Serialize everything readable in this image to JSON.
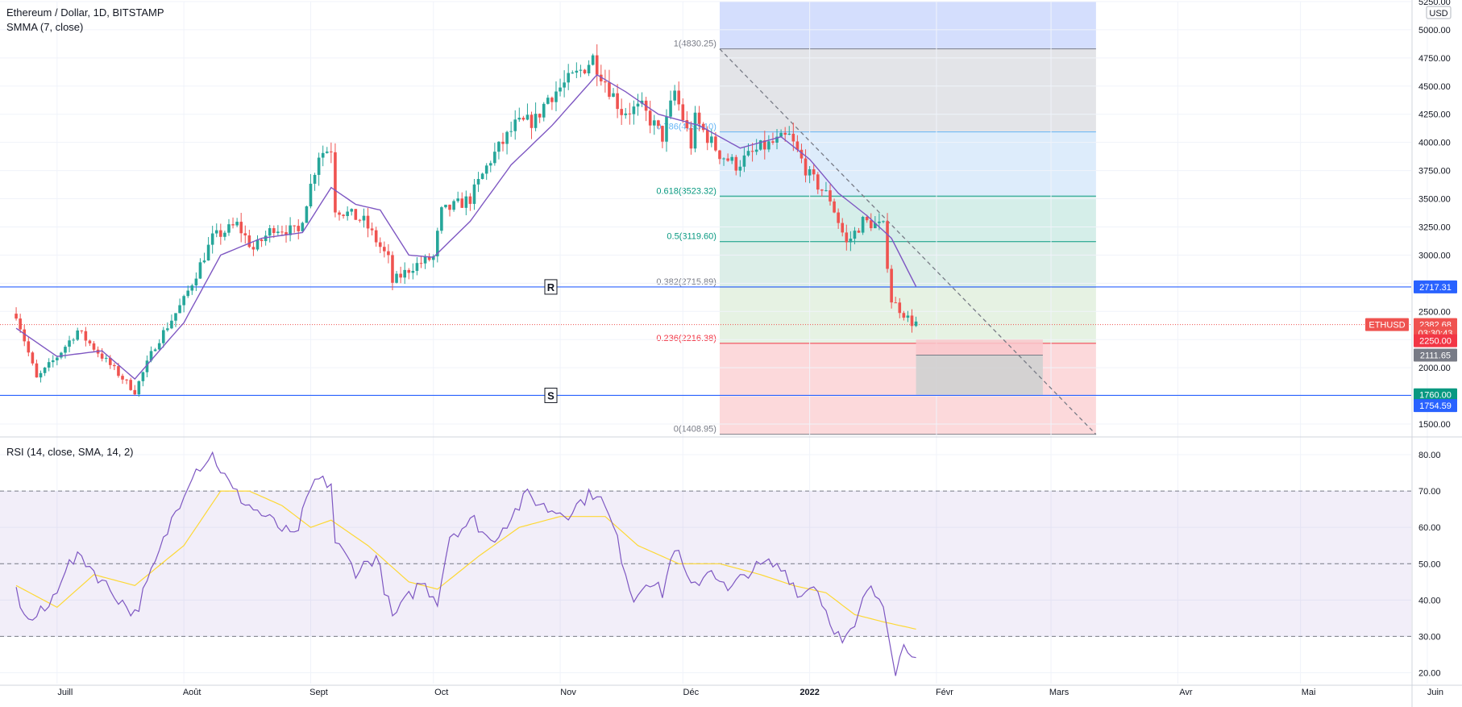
{
  "header": {
    "symbol_title": "Ethereum / Dollar, 1D, BITSTAMP",
    "indicator_smma": "SMMA (7, close)",
    "currency": "USD"
  },
  "rsi_panel": {
    "title": "RSI (14, close, SMA, 14, 2)"
  },
  "colors": {
    "up": "#26a69a",
    "down": "#ef5350",
    "smma": "#7e57c2",
    "rsi": "#7e57c2",
    "rsi_ma": "#fdd835",
    "horizontal_line": "#2962ff"
  },
  "chart_data": [
    {
      "type": "candlestick",
      "title": "Ethereum / Dollar, 1D, BITSTAMP",
      "y_scale": "price",
      "ylim": [
        1400,
        5250
      ],
      "y_ticks": [
        "1500.00",
        "1750.00",
        "2000.00",
        "2250.00",
        "2500.00",
        "2750.00",
        "3000.00",
        "3250.00",
        "3500.00",
        "3750.00",
        "4000.00",
        "4250.00",
        "4500.00",
        "4750.00",
        "5000.00",
        "5250.00"
      ],
      "x_ticks": [
        "Juill",
        "Août",
        "Sept",
        "Oct",
        "Nov",
        "Déc",
        "2022",
        "Févr",
        "Mars",
        "Avr",
        "Mai",
        "Juin"
      ],
      "x_range": [
        "2021-06-21",
        "2022-06-30"
      ],
      "price_anchors": [
        [
          "2021-06-21",
          2480
        ],
        [
          "2021-06-26",
          1900
        ],
        [
          "2021-07-01",
          2100
        ],
        [
          "2021-07-06",
          2330
        ],
        [
          "2021-07-12",
          2100
        ],
        [
          "2021-07-20",
          1790
        ],
        [
          "2021-07-25",
          2200
        ],
        [
          "2021-08-01",
          2600
        ],
        [
          "2021-08-08",
          3150
        ],
        [
          "2021-08-14",
          3270
        ],
        [
          "2021-08-18",
          3050
        ],
        [
          "2021-08-23",
          3250
        ],
        [
          "2021-08-29",
          3200
        ],
        [
          "2021-09-03",
          3900
        ],
        [
          "2021-09-06",
          3950
        ],
        [
          "2021-09-07",
          3420
        ],
        [
          "2021-09-14",
          3300
        ],
        [
          "2021-09-20",
          2960
        ],
        [
          "2021-09-21",
          2760
        ],
        [
          "2021-09-26",
          2900
        ],
        [
          "2021-10-01",
          2980
        ],
        [
          "2021-10-03",
          3380
        ],
        [
          "2021-10-10",
          3500
        ],
        [
          "2021-10-15",
          3850
        ],
        [
          "2021-10-21",
          4150
        ],
        [
          "2021-10-26",
          4200
        ],
        [
          "2021-10-29",
          4400
        ],
        [
          "2021-11-05",
          4600
        ],
        [
          "2021-11-09",
          4750
        ],
        [
          "2021-11-16",
          4280
        ],
        [
          "2021-11-21",
          4300
        ],
        [
          "2021-11-26",
          4050
        ],
        [
          "2021-11-29",
          4450
        ],
        [
          "2021-12-03",
          3980
        ],
        [
          "2021-12-04",
          4200
        ],
        [
          "2021-12-10",
          3900
        ],
        [
          "2021-12-14",
          3800
        ],
        [
          "2021-12-20",
          3950
        ],
        [
          "2021-12-27",
          4050
        ],
        [
          "2022-01-01",
          3700
        ],
        [
          "2022-01-06",
          3500
        ],
        [
          "2022-01-10",
          3100
        ],
        [
          "2022-01-14",
          3300
        ],
        [
          "2022-01-19",
          3250
        ],
        [
          "2022-01-21",
          2600
        ],
        [
          "2022-01-26",
          2400
        ],
        [
          "2022-01-27",
          2400
        ]
      ],
      "smma_anchors": [
        [
          "2021-06-21",
          2350
        ],
        [
          "2021-07-01",
          2100
        ],
        [
          "2021-07-12",
          2150
        ],
        [
          "2021-07-20",
          1900
        ],
        [
          "2021-08-01",
          2400
        ],
        [
          "2021-08-10",
          3000
        ],
        [
          "2021-08-20",
          3150
        ],
        [
          "2021-08-30",
          3200
        ],
        [
          "2021-09-06",
          3600
        ],
        [
          "2021-09-12",
          3450
        ],
        [
          "2021-09-18",
          3400
        ],
        [
          "2021-09-25",
          3000
        ],
        [
          "2021-10-01",
          2980
        ],
        [
          "2021-10-10",
          3300
        ],
        [
          "2021-10-20",
          3800
        ],
        [
          "2021-10-30",
          4150
        ],
        [
          "2021-11-10",
          4600
        ],
        [
          "2021-11-17",
          4450
        ],
        [
          "2021-11-25",
          4250
        ],
        [
          "2021-12-05",
          4150
        ],
        [
          "2021-12-15",
          3950
        ],
        [
          "2021-12-25",
          4050
        ],
        [
          "2022-01-01",
          3850
        ],
        [
          "2022-01-08",
          3550
        ],
        [
          "2022-01-15",
          3350
        ],
        [
          "2022-01-21",
          3150
        ],
        [
          "2022-01-27",
          2720
        ]
      ],
      "fibonacci": {
        "date_range": [
          "2021-12-10",
          "2022-03-12"
        ],
        "levels": [
          {
            "label": "1(4830.25)",
            "price": 4830.25,
            "color": "#787b86"
          },
          {
            "label": "0.786(4093.10)",
            "price": 4093.1,
            "color": "#64b5f6"
          },
          {
            "label": "0.618(3523.32)",
            "price": 3523.32,
            "color": "#089981"
          },
          {
            "label": "0.5(3119.60)",
            "price": 3119.6,
            "color": "#089981"
          },
          {
            "label": "0.382(2715.89)",
            "price": 2715.89,
            "color": "#787b86"
          },
          {
            "label": "0.236(2216.38)",
            "price": 2216.38,
            "color": "#f23645"
          },
          {
            "label": "0(1408.95)",
            "price": 1408.95,
            "color": "#787b86"
          }
        ],
        "zones": [
          {
            "from": 5250,
            "to": 4830.25,
            "color": "#d4defd"
          },
          {
            "from": 4830.25,
            "to": 4093.1,
            "color": "#e3e4e8"
          },
          {
            "from": 4093.1,
            "to": 3523.32,
            "color": "#ddecfb"
          },
          {
            "from": 3523.32,
            "to": 3119.6,
            "color": "#d5eee9"
          },
          {
            "from": 3119.6,
            "to": 2715.89,
            "color": "#dceee8"
          },
          {
            "from": 2715.89,
            "to": 2216.38,
            "color": "#e6f2e3"
          },
          {
            "from": 2216.38,
            "to": 1408.95,
            "color": "#fcd9db"
          }
        ]
      },
      "trend_line": {
        "from": [
          "2021-12-10",
          4830
        ],
        "to": [
          "2022-03-12",
          1408
        ]
      },
      "horizontal_lines": [
        {
          "price": 2717.31,
          "label": "R"
        },
        {
          "price": 1754.59,
          "label": "S"
        }
      ],
      "position_tool": {
        "dates": [
          "2022-01-27",
          "2022-02-27"
        ],
        "stop": {
          "from": 2250,
          "to": 2111.65,
          "color": "#f9c7cb"
        },
        "target": {
          "from": 2111.65,
          "to": 1760,
          "color": "#d2d2d2"
        }
      },
      "last_price": 2382.68,
      "price_labels": [
        {
          "text": "2717.31",
          "price": 2717.31,
          "color": "#2962ff"
        },
        {
          "text": "2382.68",
          "price": 2382.68,
          "color": "#ef5350"
        },
        {
          "text": "03:30:43",
          "price": 2310,
          "color": "#ef5350"
        },
        {
          "text": "2250.00",
          "price": 2240,
          "color": "#f23645"
        },
        {
          "text": "2111.65",
          "price": 2111.65,
          "color": "#787b86"
        },
        {
          "text": "1760.00",
          "price": 1760,
          "color": "#089981"
        },
        {
          "text": "1754.59",
          "price": 1664,
          "color": "#2962ff"
        }
      ],
      "symbol_tag": "ETHUSD"
    },
    {
      "type": "line",
      "title": "RSI (14, close, SMA, 14, 2)",
      "ylim": [
        17,
        84
      ],
      "y_ticks": [
        "20.00",
        "30.00",
        "40.00",
        "50.00",
        "60.00",
        "70.00",
        "80.00"
      ],
      "bands": [
        70,
        50,
        30
      ],
      "rsi_anchors": [
        [
          "2021-06-21",
          42
        ],
        [
          "2021-06-24",
          34
        ],
        [
          "2021-06-29",
          38
        ],
        [
          "2021-07-03",
          49
        ],
        [
          "2021-07-07",
          52
        ],
        [
          "2021-07-13",
          44
        ],
        [
          "2021-07-20",
          36
        ],
        [
          "2021-07-25",
          50
        ],
        [
          "2021-07-29",
          62
        ],
        [
          "2021-08-03",
          75
        ],
        [
          "2021-08-08",
          80
        ],
        [
          "2021-08-13",
          70
        ],
        [
          "2021-08-17",
          66
        ],
        [
          "2021-08-22",
          62
        ],
        [
          "2021-08-28",
          57
        ],
        [
          "2021-09-02",
          73
        ],
        [
          "2021-09-06",
          72
        ],
        [
          "2021-09-07",
          56
        ],
        [
          "2021-09-12",
          48
        ],
        [
          "2021-09-17",
          52
        ],
        [
          "2021-09-21",
          35
        ],
        [
          "2021-09-28",
          45
        ],
        [
          "2021-10-02",
          40
        ],
        [
          "2021-10-05",
          58
        ],
        [
          "2021-10-11",
          62
        ],
        [
          "2021-10-15",
          56
        ],
        [
          "2021-10-20",
          63
        ],
        [
          "2021-10-24",
          69
        ],
        [
          "2021-10-29",
          65
        ],
        [
          "2021-11-03",
          64
        ],
        [
          "2021-11-07",
          68
        ],
        [
          "2021-11-10",
          70
        ],
        [
          "2021-11-14",
          60
        ],
        [
          "2021-11-19",
          40
        ],
        [
          "2021-11-22",
          46
        ],
        [
          "2021-11-26",
          42
        ],
        [
          "2021-11-29",
          55
        ],
        [
          "2021-12-03",
          43
        ],
        [
          "2021-12-08",
          49
        ],
        [
          "2021-12-12",
          42
        ],
        [
          "2021-12-17",
          48
        ],
        [
          "2021-12-22",
          50
        ],
        [
          "2021-12-26",
          48
        ],
        [
          "2021-12-30",
          41
        ],
        [
          "2022-01-02",
          45
        ],
        [
          "2022-01-05",
          37
        ],
        [
          "2022-01-09",
          28
        ],
        [
          "2022-01-12",
          32
        ],
        [
          "2022-01-15",
          43
        ],
        [
          "2022-01-19",
          40
        ],
        [
          "2022-01-21",
          27
        ],
        [
          "2022-01-22",
          21
        ],
        [
          "2022-01-24",
          27
        ],
        [
          "2022-01-27",
          26
        ]
      ],
      "rsi_ma_anchors": [
        [
          "2021-06-21",
          44
        ],
        [
          "2021-07-01",
          38
        ],
        [
          "2021-07-10",
          47
        ],
        [
          "2021-07-20",
          44
        ],
        [
          "2021-08-01",
          55
        ],
        [
          "2021-08-10",
          70
        ],
        [
          "2021-08-17",
          70
        ],
        [
          "2021-08-25",
          66
        ],
        [
          "2021-09-01",
          60
        ],
        [
          "2021-09-06",
          62
        ],
        [
          "2021-09-15",
          55
        ],
        [
          "2021-09-25",
          45
        ],
        [
          "2021-10-02",
          43
        ],
        [
          "2021-10-12",
          52
        ],
        [
          "2021-10-22",
          60
        ],
        [
          "2021-11-01",
          63
        ],
        [
          "2021-11-12",
          63
        ],
        [
          "2021-11-20",
          55
        ],
        [
          "2021-11-30",
          50
        ],
        [
          "2021-12-10",
          50
        ],
        [
          "2021-12-20",
          47
        ],
        [
          "2021-12-28",
          44
        ],
        [
          "2022-01-05",
          42
        ],
        [
          "2022-01-12",
          36
        ],
        [
          "2022-01-19",
          34
        ],
        [
          "2022-01-27",
          32
        ]
      ]
    }
  ]
}
